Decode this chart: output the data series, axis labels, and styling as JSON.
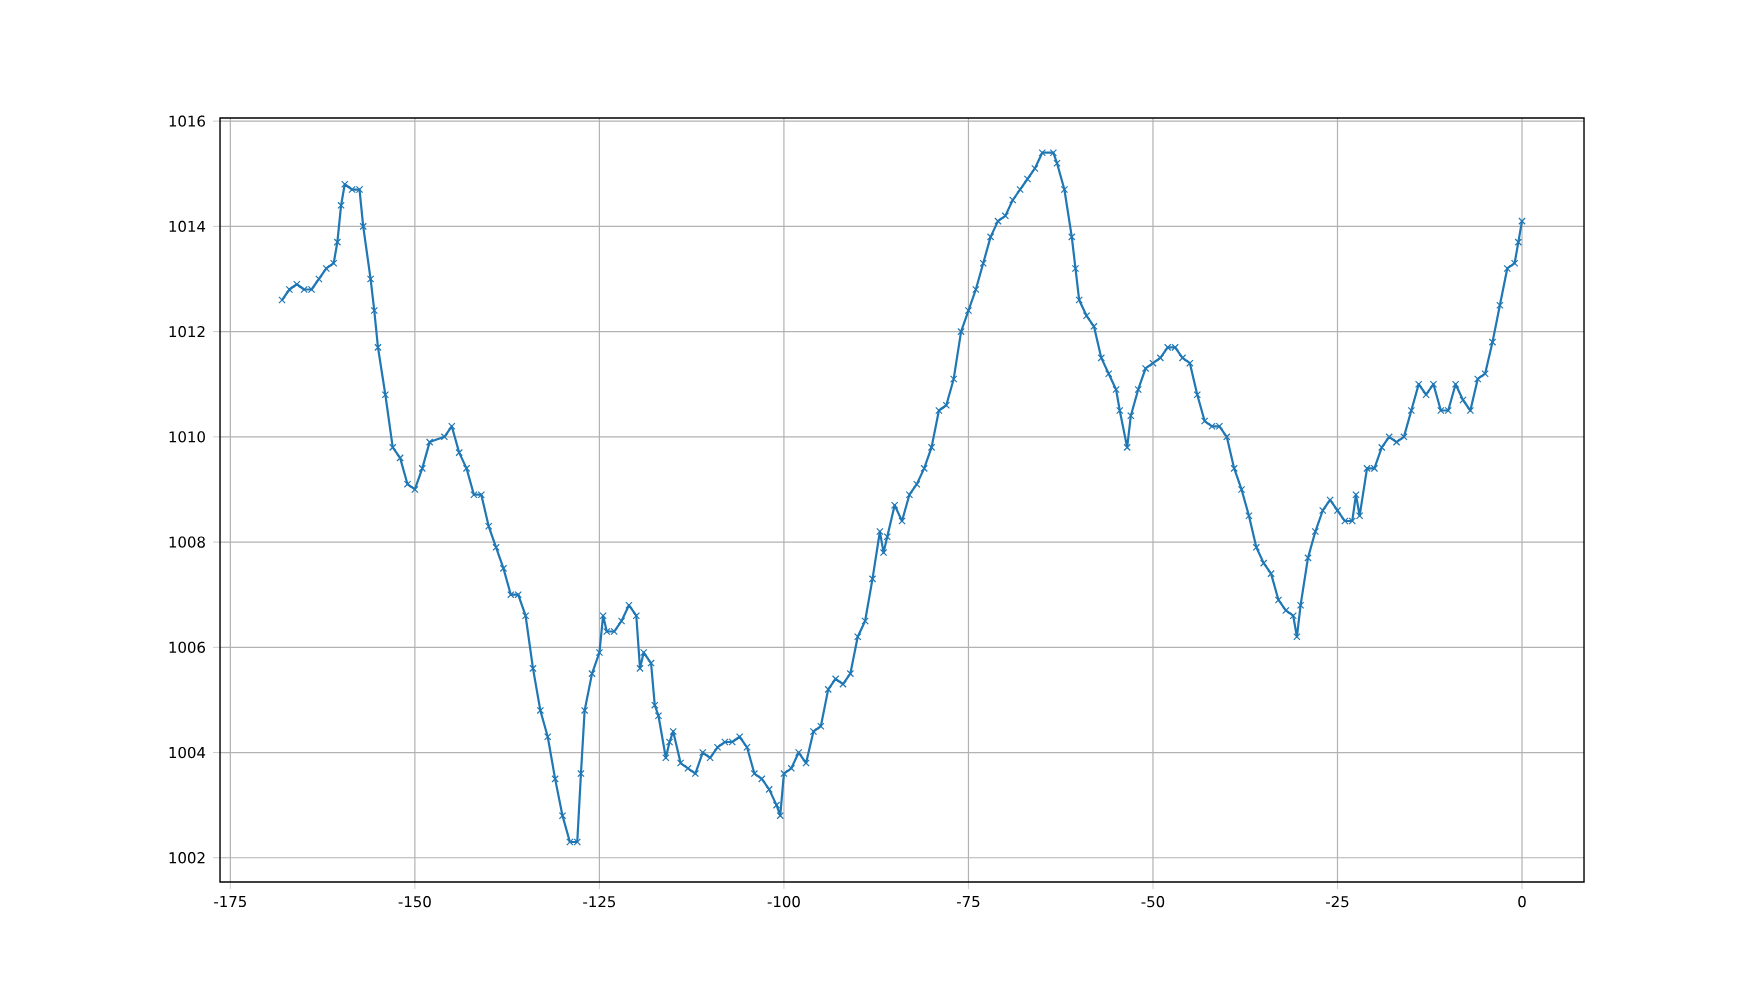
{
  "chart_data": {
    "type": "line",
    "color": "#1f77b4",
    "marker": "cross",
    "line_style": "solid",
    "grid": true,
    "xlim": [
      -176.4,
      8.4
    ],
    "ylim": [
      1001.54,
      1016.06
    ],
    "xticks": [
      -175,
      -150,
      -125,
      -100,
      -75,
      -50,
      -25,
      0
    ],
    "yticks": [
      1002,
      1004,
      1006,
      1008,
      1010,
      1012,
      1014,
      1016
    ],
    "x": [
      -168,
      -167,
      -166,
      -165,
      -164,
      -163,
      -162,
      -161,
      -160.5,
      -160,
      -159.5,
      -158.5,
      -157.5,
      -157,
      -156,
      -155.5,
      -155,
      -154,
      -153,
      -152,
      -151,
      -150,
      -149,
      -148,
      -146,
      -145,
      -144,
      -143,
      -142,
      -141,
      -140,
      -139,
      -138,
      -137,
      -136,
      -135,
      -134,
      -133,
      -132,
      -131,
      -130,
      -129,
      -128,
      -127.5,
      -127,
      -126,
      -125,
      -124.5,
      -124,
      -123,
      -122,
      -121,
      -120,
      -119.5,
      -119,
      -118,
      -117.5,
      -117,
      -116,
      -115.5,
      -115,
      -114,
      -113,
      -112,
      -111,
      -110,
      -109,
      -108,
      -107,
      -106,
      -105,
      -104,
      -103,
      -102,
      -101,
      -100.5,
      -100,
      -99,
      -98,
      -97,
      -96,
      -95,
      -94,
      -93,
      -92,
      -91,
      -90,
      -89,
      -88,
      -87,
      -86.5,
      -86,
      -85,
      -84,
      -83,
      -82,
      -81,
      -80,
      -79,
      -78,
      -77,
      -76,
      -75,
      -74,
      -73,
      -72,
      -71,
      -70,
      -69,
      -68,
      -67,
      -66,
      -65,
      -63.5,
      -63,
      -62,
      -61,
      -60.5,
      -60,
      -59,
      -58,
      -57,
      -56,
      -55,
      -54.5,
      -53.5,
      -53,
      -52,
      -51,
      -50,
      -49,
      -48,
      -47,
      -46,
      -45,
      -44,
      -43,
      -42,
      -41,
      -40,
      -39,
      -38,
      -37,
      -36,
      -35,
      -34,
      -33,
      -32,
      -31,
      -30.5,
      -30,
      -29,
      -28,
      -27,
      -26,
      -25,
      -24,
      -23,
      -22.5,
      -22,
      -21,
      -20,
      -19,
      -18,
      -17,
      -16,
      -15,
      -14,
      -13,
      -12,
      -11,
      -10,
      -9,
      -8,
      -7,
      -6,
      -5,
      -4,
      -3,
      -2,
      -1,
      -0.5,
      0
    ],
    "values": [
      1012.6,
      1012.8,
      1012.9,
      1012.8,
      1012.8,
      1013.0,
      1013.2,
      1013.3,
      1013.7,
      1014.4,
      1014.8,
      1014.7,
      1014.7,
      1014.0,
      1013.0,
      1012.4,
      1011.7,
      1010.8,
      1009.8,
      1009.6,
      1009.1,
      1009.0,
      1009.4,
      1009.9,
      1010.0,
      1010.2,
      1009.7,
      1009.4,
      1008.9,
      1008.9,
      1008.3,
      1007.9,
      1007.5,
      1007.0,
      1007.0,
      1006.6,
      1005.6,
      1004.8,
      1004.3,
      1003.5,
      1002.8,
      1002.3,
      1002.3,
      1003.6,
      1004.8,
      1005.5,
      1005.9,
      1006.6,
      1006.3,
      1006.3,
      1006.5,
      1006.8,
      1006.6,
      1005.6,
      1005.9,
      1005.7,
      1004.9,
      1004.7,
      1003.9,
      1004.2,
      1004.4,
      1003.8,
      1003.7,
      1003.6,
      1004.0,
      1003.9,
      1004.1,
      1004.2,
      1004.2,
      1004.3,
      1004.1,
      1003.6,
      1003.5,
      1003.3,
      1003.0,
      1002.8,
      1003.6,
      1003.7,
      1004.0,
      1003.8,
      1004.4,
      1004.5,
      1005.2,
      1005.4,
      1005.3,
      1005.5,
      1006.2,
      1006.5,
      1007.3,
      1008.2,
      1007.8,
      1008.1,
      1008.7,
      1008.4,
      1008.9,
      1009.1,
      1009.4,
      1009.8,
      1010.5,
      1010.6,
      1011.1,
      1012.0,
      1012.4,
      1012.8,
      1013.3,
      1013.8,
      1014.1,
      1014.2,
      1014.5,
      1014.7,
      1014.9,
      1015.1,
      1015.4,
      1015.4,
      1015.2,
      1014.7,
      1013.8,
      1013.2,
      1012.6,
      1012.3,
      1012.1,
      1011.5,
      1011.2,
      1010.9,
      1010.5,
      1009.8,
      1010.4,
      1010.9,
      1011.3,
      1011.4,
      1011.5,
      1011.7,
      1011.7,
      1011.5,
      1011.4,
      1010.8,
      1010.3,
      1010.2,
      1010.2,
      1010.0,
      1009.4,
      1009.0,
      1008.5,
      1007.9,
      1007.6,
      1007.4,
      1006.9,
      1006.7,
      1006.6,
      1006.2,
      1006.8,
      1007.7,
      1008.2,
      1008.6,
      1008.8,
      1008.6,
      1008.4,
      1008.4,
      1008.9,
      1008.5,
      1009.4,
      1009.4,
      1009.8,
      1010.0,
      1009.9,
      1010.0,
      1010.5,
      1011.0,
      1010.8,
      1011.0,
      1010.5,
      1010.5,
      1011.0,
      1010.7,
      1010.5,
      1011.1,
      1011.2,
      1011.8,
      1012.5,
      1013.2,
      1013.3,
      1013.7,
      1014.1
    ]
  }
}
